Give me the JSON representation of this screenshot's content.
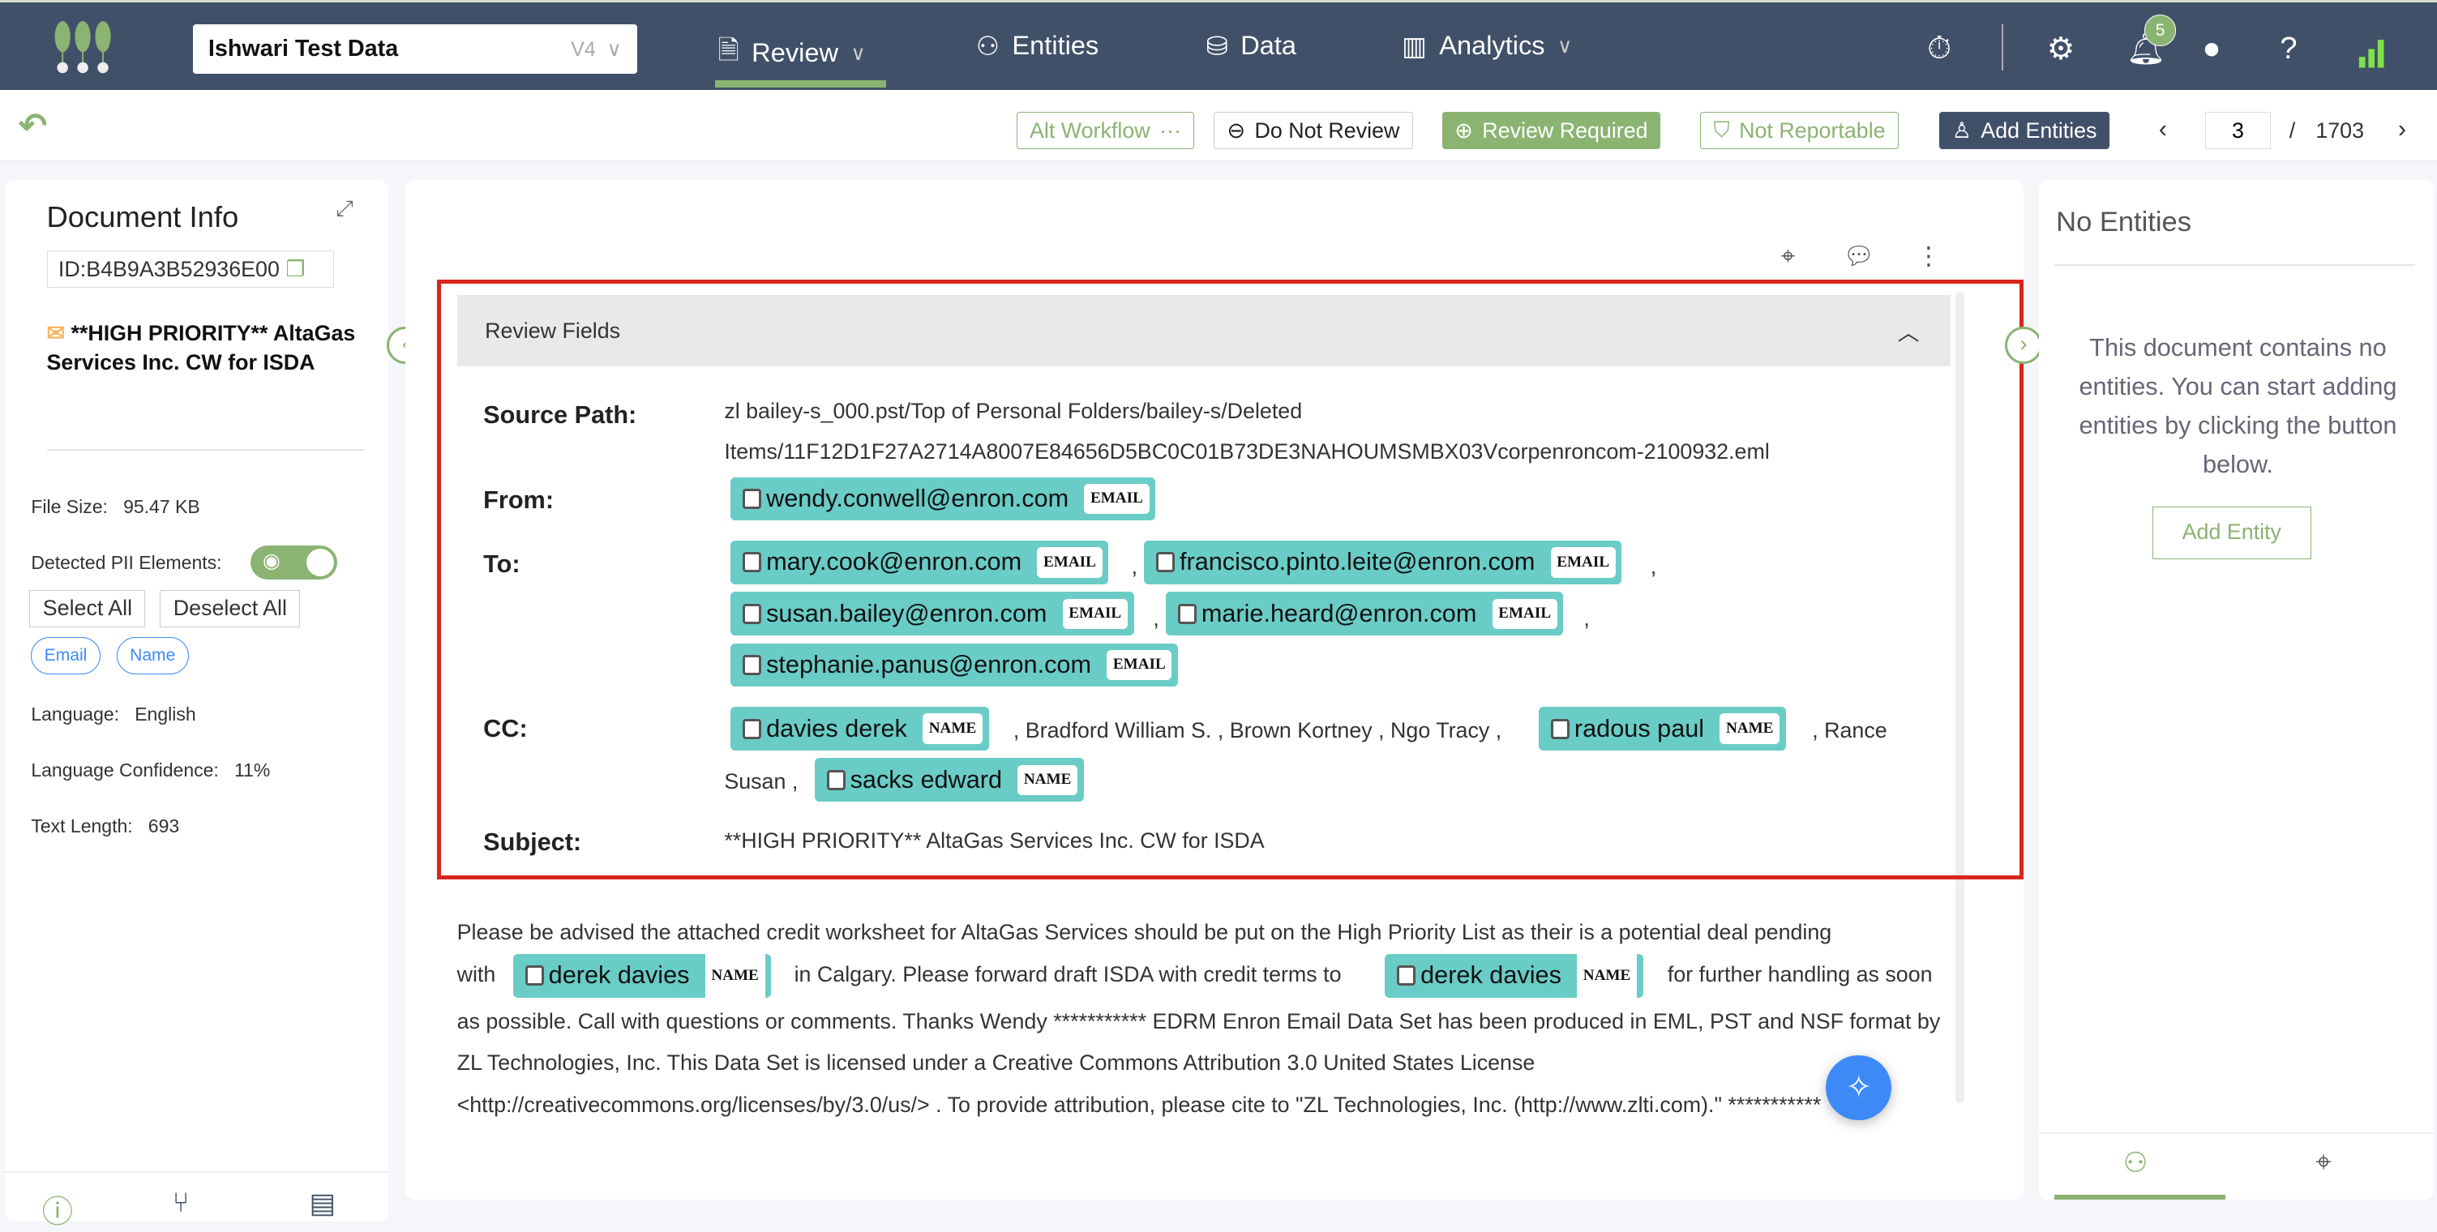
{
  "header": {
    "project": "Ishwari Test Data",
    "version": "V4",
    "nav": [
      {
        "label": "Review",
        "icon": "document-icon"
      },
      {
        "label": "Entities",
        "icon": "entities-icon"
      },
      {
        "label": "Data",
        "icon": "database-icon"
      },
      {
        "label": "Analytics",
        "icon": "bar-chart-icon"
      }
    ],
    "notifications": "5",
    "accent": "#8bb372",
    "bg": "#415069"
  },
  "toolbar": {
    "alt_workflow": "Alt Workflow",
    "alt_more": "···",
    "do_not_review": "Do Not Review",
    "review_required": "Review Required",
    "not_reportable": "Not Reportable",
    "add_entities": "Add Entities",
    "page": "3",
    "page_sep": "/",
    "total": "1703"
  },
  "doc_info": {
    "title": "Document Info",
    "id": "ID:B4B9A3B52936E00",
    "subject": "**HIGH PRIORITY** AltaGas Services Inc. CW for ISDA",
    "file_size_label": "File Size:",
    "file_size": "95.47 KB",
    "pii_label": "Detected PII Elements:",
    "select_all": "Select All",
    "deselect_all": "Deselect All",
    "filters": [
      "Email",
      "Name"
    ],
    "language_label": "Language:",
    "language": "English",
    "confidence_label": "Language Confidence:",
    "confidence": "11%",
    "length_label": "Text Length:",
    "length": "693"
  },
  "review": {
    "header": "Review Fields",
    "source_label": "Source Path:",
    "source1": "zl bailey-s_000.pst/Top of Personal Folders/bailey-s/Deleted",
    "source2": "Items/11F12D1F27A2714A8007E84656D5BC0C01B73DE3NAHOUMSMBX03Vcorpenroncom-2100932.eml",
    "from_label": "From:",
    "from": "wendy.conwell@enron.com",
    "to_label": "To:",
    "to": [
      "mary.cook@enron.com",
      "francisco.pinto.leite@enron.com",
      "susan.bailey@enron.com",
      "marie.heard@enron.com",
      "stephanie.panus@enron.com"
    ],
    "cc_label": "CC:",
    "cc1": "davies derek",
    "cc_mid": ", Bradford William S. , Brown Kortney , Ngo Tracy ,",
    "cc2": "radous paul",
    "cc_rance": ", Rance",
    "cc_susan": "Susan ,",
    "cc3": "sacks edward",
    "subject_label": "Subject:",
    "subject": "**HIGH PRIORITY** AltaGas Services Inc. CW for ISDA",
    "email_tag": "EMAIL",
    "name_tag": "NAME",
    "comma": ","
  },
  "body": {
    "p1": "Please be advised the attached credit worksheet for AltaGas Services should be put on the High Priority List as their is a potential deal pending",
    "with": "with",
    "name": "derek davies",
    "p2": "in Calgary. Please forward draft ISDA with credit terms to",
    "p3": "for further handling as soon",
    "p4": "as possible. Call with questions or comments. Thanks Wendy *********** EDRM Enron Email Data Set has been produced in EML, PST and NSF format by ZL Technologies, Inc. This Data Set is licensed under a Creative Commons Attribution 3.0 United States License <http://creativecommons.org/licenses/by/3.0/us/> . To provide attribution, please cite to \"ZL Technologies, Inc. (http://www.zlti.com).\" ***********"
  },
  "entities": {
    "title": "No Entities",
    "message": "This document contains no entities. You can start adding entities by clicking the button below.",
    "add": "Add Entity"
  }
}
